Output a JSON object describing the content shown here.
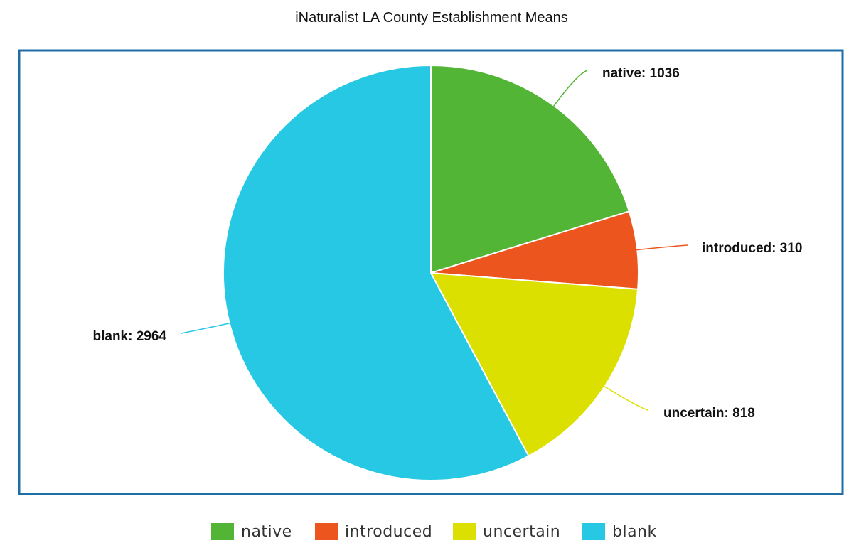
{
  "chart_data": {
    "type": "pie",
    "title": "iNaturalist LA County Establishment Means",
    "slices": [
      {
        "name": "native",
        "value": 1036,
        "label": "native: 1036",
        "color": "#52b535"
      },
      {
        "name": "introduced",
        "value": 310,
        "label": "introduced: 310",
        "color": "#ec561e"
      },
      {
        "name": "uncertain",
        "value": 818,
        "label": "uncertain: 818",
        "color": "#dbe000"
      },
      {
        "name": "blank",
        "value": 2964,
        "label": "blank: 2964",
        "color": "#26c8e3"
      }
    ],
    "legend": {
      "placement": "bottom",
      "entries": [
        "native",
        "introduced",
        "uncertain",
        "blank"
      ]
    },
    "frame_color": "#1f6da6"
  }
}
